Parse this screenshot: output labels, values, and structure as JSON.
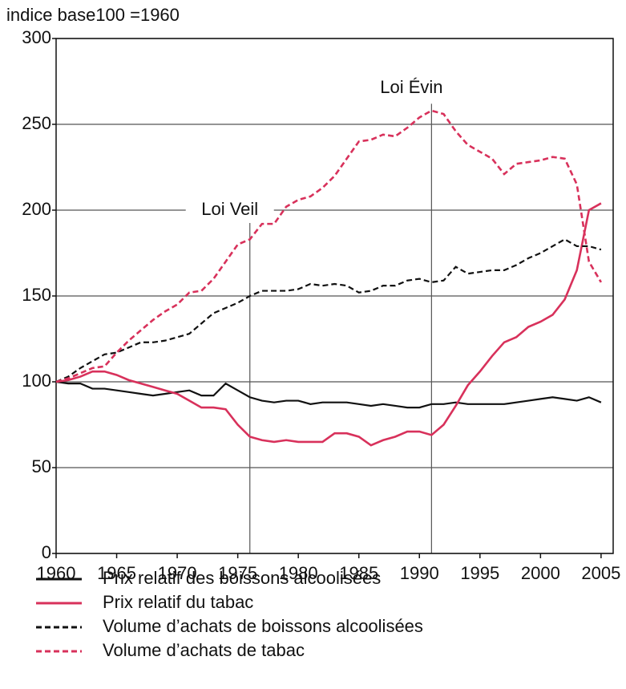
{
  "chart_data": {
    "type": "line",
    "y_axis_label": "indice base100 =1960",
    "x": [
      1960,
      1961,
      1962,
      1963,
      1964,
      1965,
      1966,
      1967,
      1968,
      1969,
      1970,
      1971,
      1972,
      1973,
      1974,
      1975,
      1976,
      1977,
      1978,
      1979,
      1980,
      1981,
      1982,
      1983,
      1984,
      1985,
      1986,
      1987,
      1988,
      1989,
      1990,
      1991,
      1992,
      1993,
      1994,
      1995,
      1996,
      1997,
      1998,
      1999,
      2000,
      2001,
      2002,
      2003,
      2004,
      2005
    ],
    "series": [
      {
        "name": "Prix relatif des boissons alcoolisées",
        "color": "#111111",
        "style": "solid",
        "values": [
          100,
          99,
          99,
          96,
          96,
          95,
          94,
          93,
          92,
          93,
          94,
          95,
          92,
          92,
          99,
          95,
          91,
          89,
          88,
          89,
          89,
          87,
          88,
          88,
          88,
          87,
          86,
          87,
          86,
          85,
          85,
          87,
          87,
          88,
          87,
          87,
          87,
          87,
          88,
          89,
          90,
          91,
          90,
          89,
          91,
          88
        ]
      },
      {
        "name": "Prix relatif du tabac",
        "color": "#d8315b",
        "style": "solid",
        "values": [
          100,
          101,
          103,
          106,
          106,
          104,
          101,
          99,
          97,
          95,
          93,
          89,
          85,
          85,
          84,
          75,
          68,
          66,
          65,
          66,
          65,
          65,
          65,
          70,
          70,
          68,
          63,
          66,
          68,
          71,
          71,
          69,
          75,
          86,
          98,
          106,
          115,
          123,
          126,
          132,
          135,
          139,
          148,
          165,
          200,
          204
        ]
      },
      {
        "name": "Volume d’achats de boissons alcoolisées",
        "color": "#111111",
        "style": "dashed",
        "values": [
          100,
          103,
          108,
          112,
          116,
          117,
          120,
          123,
          123,
          124,
          126,
          128,
          134,
          140,
          143,
          146,
          150,
          153,
          153,
          153,
          154,
          157,
          156,
          157,
          156,
          152,
          153,
          156,
          156,
          159,
          160,
          158,
          159,
          167,
          163,
          164,
          165,
          165,
          168,
          172,
          175,
          179,
          183,
          179,
          179,
          177
        ]
      },
      {
        "name": "Volume d’achats de tabac",
        "color": "#d8315b",
        "style": "dashed",
        "values": [
          100,
          102,
          105,
          108,
          109,
          117,
          124,
          130,
          136,
          141,
          145,
          152,
          153,
          160,
          170,
          180,
          183,
          192,
          192,
          202,
          206,
          208,
          213,
          220,
          230,
          240,
          241,
          244,
          243,
          248,
          254,
          258,
          256,
          246,
          238,
          234,
          230,
          221,
          227,
          228,
          229,
          231,
          230,
          215,
          170,
          158
        ]
      }
    ],
    "annotations": [
      {
        "text": "Loi Veil",
        "x": 1976
      },
      {
        "text": "Loi Évin",
        "x": 1991
      }
    ],
    "xlim": [
      1960,
      2006
    ],
    "xticks": [
      1960,
      1965,
      1970,
      1975,
      1980,
      1985,
      1990,
      1995,
      2000,
      2005
    ],
    "ylim": [
      0,
      300
    ],
    "yticks": [
      0,
      50,
      100,
      150,
      200,
      250,
      300
    ],
    "grid": true
  }
}
